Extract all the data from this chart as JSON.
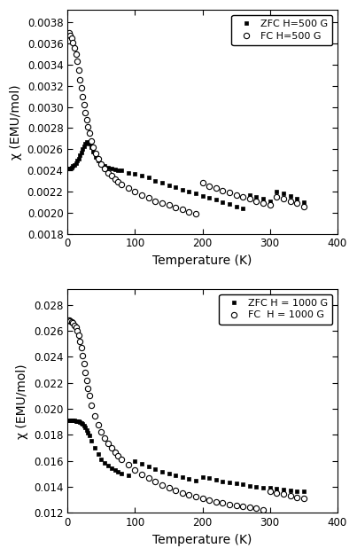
{
  "top": {
    "xlabel": "Temperature (K)",
    "ylabel": "χ (EMU/mol)",
    "xlim": [
      0,
      400
    ],
    "ylim": [
      0.0018,
      0.00392
    ],
    "yticks": [
      0.0018,
      0.002,
      0.0022,
      0.0024,
      0.0026,
      0.0028,
      0.003,
      0.0032,
      0.0034,
      0.0036,
      0.0038
    ],
    "xticks": [
      0,
      100,
      200,
      300,
      400
    ],
    "legend_zfc": "ZFC H=500 G",
    "legend_fc": "FC H=500 G",
    "fc_T": [
      2,
      4,
      6,
      8,
      10,
      12,
      14,
      16,
      18,
      20,
      22,
      24,
      26,
      28,
      30,
      32,
      35,
      38,
      42,
      46,
      50,
      55,
      60,
      65,
      70,
      75,
      80,
      90,
      100,
      110,
      120,
      130,
      140,
      150,
      160,
      170,
      180,
      190,
      200,
      210,
      220,
      230,
      240,
      250,
      260,
      270,
      280,
      290,
      300,
      310,
      320,
      330,
      340,
      350
    ],
    "fc_chi": [
      0.0037,
      0.00368,
      0.00365,
      0.00361,
      0.00356,
      0.0035,
      0.00343,
      0.00335,
      0.00326,
      0.00318,
      0.0031,
      0.00302,
      0.00295,
      0.00288,
      0.00281,
      0.00275,
      0.00268,
      0.00262,
      0.00256,
      0.00251,
      0.00246,
      0.00242,
      0.00238,
      0.00235,
      0.00232,
      0.00229,
      0.00227,
      0.00223,
      0.0022,
      0.00217,
      0.00214,
      0.00211,
      0.00209,
      0.00207,
      0.00205,
      0.00203,
      0.00201,
      0.00199,
      0.00228,
      0.00225,
      0.00223,
      0.00221,
      0.00219,
      0.00217,
      0.00215,
      0.00213,
      0.00211,
      0.00209,
      0.00207,
      0.00215,
      0.00213,
      0.00211,
      0.00209,
      0.00206
    ],
    "zfc_T": [
      2,
      4,
      6,
      8,
      10,
      12,
      14,
      16,
      18,
      20,
      22,
      24,
      26,
      28,
      30,
      32,
      35,
      38,
      42,
      46,
      50,
      55,
      60,
      65,
      70,
      75,
      80,
      90,
      100,
      110,
      120,
      130,
      140,
      150,
      160,
      170,
      180,
      190,
      200,
      210,
      220,
      230,
      240,
      250,
      260,
      270,
      280,
      290,
      300,
      310,
      320,
      330,
      340,
      350
    ],
    "zfc_chi": [
      0.00242,
      0.00242,
      0.00243,
      0.00244,
      0.00245,
      0.00247,
      0.00249,
      0.00251,
      0.00254,
      0.00257,
      0.0026,
      0.00263,
      0.00265,
      0.00267,
      0.00266,
      0.00265,
      0.00262,
      0.00258,
      0.00253,
      0.00249,
      0.00246,
      0.00244,
      0.00243,
      0.00242,
      0.00241,
      0.0024,
      0.0024,
      0.00238,
      0.00237,
      0.00235,
      0.00233,
      0.0023,
      0.00228,
      0.00226,
      0.00224,
      0.00222,
      0.0022,
      0.00218,
      0.00216,
      0.00214,
      0.00212,
      0.0021,
      0.00208,
      0.00206,
      0.00204,
      0.00217,
      0.00215,
      0.00213,
      0.00211,
      0.0022,
      0.00218,
      0.00216,
      0.00213,
      0.0021
    ]
  },
  "bottom": {
    "xlabel": "Temperature (K)",
    "ylabel": "χ (EMU/mol)",
    "xlim": [
      0,
      400
    ],
    "ylim": [
      0.012,
      0.0292
    ],
    "yticks": [
      0.012,
      0.014,
      0.016,
      0.018,
      0.02,
      0.022,
      0.024,
      0.026,
      0.028
    ],
    "xticks": [
      0,
      100,
      200,
      300,
      400
    ],
    "legend_zfc": "ZFC H = 1000 G",
    "legend_fc": "FC  H = 1000 G",
    "fc_T": [
      2,
      4,
      6,
      8,
      10,
      12,
      14,
      16,
      18,
      20,
      22,
      24,
      26,
      28,
      30,
      32,
      35,
      40,
      45,
      50,
      55,
      60,
      65,
      70,
      75,
      80,
      90,
      100,
      110,
      120,
      130,
      140,
      150,
      160,
      170,
      180,
      190,
      200,
      210,
      220,
      230,
      240,
      250,
      260,
      270,
      280,
      290,
      300,
      310,
      320,
      330,
      340,
      350
    ],
    "fc_chi": [
      0.0268,
      0.02675,
      0.02668,
      0.02658,
      0.02644,
      0.02624,
      0.02598,
      0.02563,
      0.0252,
      0.0247,
      0.02412,
      0.02348,
      0.0228,
      0.02215,
      0.02155,
      0.021,
      0.0203,
      0.01945,
      0.0188,
      0.01825,
      0.01778,
      0.01736,
      0.017,
      0.01668,
      0.01638,
      0.01612,
      0.01568,
      0.0153,
      0.01496,
      0.01466,
      0.0144,
      0.01416,
      0.01394,
      0.01374,
      0.01356,
      0.0134,
      0.01325,
      0.01312,
      0.013,
      0.01288,
      0.01277,
      0.01267,
      0.01258,
      0.01249,
      0.01241,
      0.01234,
      0.01227,
      0.01365,
      0.01355,
      0.01344,
      0.01333,
      0.01322,
      0.01313
    ],
    "zfc_T": [
      2,
      4,
      6,
      8,
      10,
      12,
      14,
      16,
      18,
      20,
      22,
      24,
      26,
      28,
      30,
      32,
      35,
      40,
      45,
      50,
      55,
      60,
      65,
      70,
      75,
      80,
      90,
      100,
      110,
      120,
      130,
      140,
      150,
      160,
      170,
      180,
      190,
      200,
      210,
      220,
      230,
      240,
      250,
      260,
      270,
      280,
      290,
      300,
      310,
      320,
      330,
      340,
      350
    ],
    "zfc_chi": [
      0.0191,
      0.0191,
      0.0191,
      0.0191,
      0.0191,
      0.01908,
      0.01906,
      0.01903,
      0.01898,
      0.01891,
      0.01882,
      0.01871,
      0.01857,
      0.0184,
      0.01818,
      0.01793,
      0.01758,
      0.01698,
      0.0165,
      0.01614,
      0.01585,
      0.01562,
      0.01545,
      0.0153,
      0.01517,
      0.01506,
      0.01487,
      0.01598,
      0.01576,
      0.01556,
      0.01537,
      0.01519,
      0.01503,
      0.01488,
      0.01474,
      0.01461,
      0.01449,
      0.01478,
      0.01466,
      0.01455,
      0.01445,
      0.01435,
      0.01426,
      0.01418,
      0.01411,
      0.01404,
      0.01397,
      0.01391,
      0.01385,
      0.01379,
      0.01374,
      0.01369,
      0.01364
    ]
  },
  "bg_color": "#ffffff",
  "marker_zfc": "s",
  "marker_fc": "o",
  "marker_size_zfc": 3.5,
  "marker_size_fc": 4.5,
  "marker_color": "#000000"
}
